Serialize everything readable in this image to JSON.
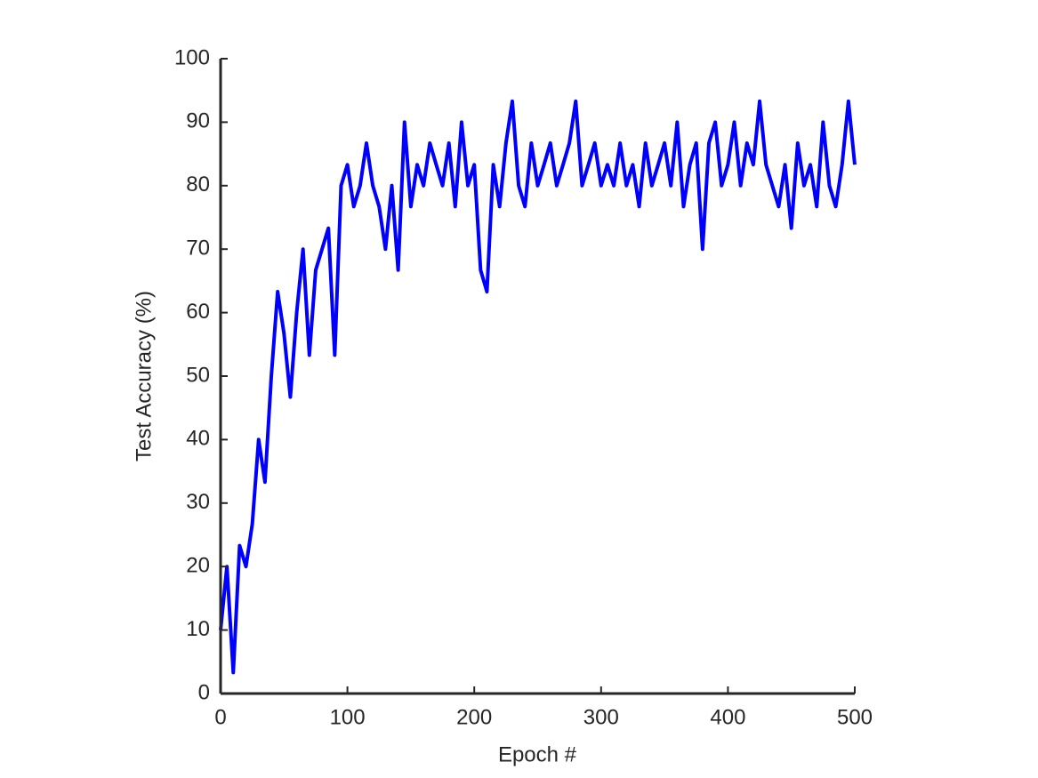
{
  "chart_data": {
    "type": "line",
    "xlabel": "Epoch #",
    "ylabel": "Test Accuracy (%)",
    "x": [
      0,
      5,
      10,
      15,
      20,
      25,
      30,
      35,
      40,
      45,
      50,
      55,
      60,
      65,
      70,
      75,
      80,
      85,
      90,
      95,
      100,
      105,
      110,
      115,
      120,
      125,
      130,
      135,
      140,
      145,
      150,
      155,
      160,
      165,
      170,
      175,
      180,
      185,
      190,
      195,
      200,
      205,
      210,
      215,
      220,
      225,
      230,
      235,
      240,
      245,
      250,
      255,
      260,
      265,
      270,
      275,
      280,
      285,
      290,
      295,
      300,
      305,
      310,
      315,
      320,
      325,
      330,
      335,
      340,
      345,
      350,
      355,
      360,
      365,
      370,
      375,
      380,
      385,
      390,
      395,
      400,
      405,
      410,
      415,
      420,
      425,
      430,
      435,
      440,
      445,
      450,
      455,
      460,
      465,
      470,
      475,
      480,
      485,
      490,
      495,
      500
    ],
    "series": [
      {
        "name": "Test Accuracy",
        "color": "#0000ff",
        "values": [
          10,
          20,
          3.3,
          23.3,
          20,
          26.7,
          40,
          33.3,
          50,
          63.3,
          56.7,
          46.7,
          60,
          70,
          53.3,
          66.7,
          70,
          73.3,
          53.3,
          80,
          83.3,
          76.7,
          80,
          86.7,
          80,
          76.7,
          70,
          80,
          66.7,
          90,
          76.7,
          83.3,
          80,
          86.7,
          83.3,
          80,
          86.7,
          76.7,
          90,
          80,
          83.3,
          66.7,
          63.3,
          83.3,
          76.7,
          86.7,
          93.3,
          80,
          76.7,
          86.7,
          80,
          83.3,
          86.7,
          80,
          83.3,
          86.7,
          93.3,
          80,
          83.3,
          86.7,
          80,
          83.3,
          80,
          86.7,
          80,
          83.3,
          76.7,
          86.7,
          80,
          83.3,
          86.7,
          80,
          90,
          76.7,
          83.3,
          86.7,
          70,
          86.7,
          90,
          80,
          83.3,
          90,
          80,
          86.7,
          83.3,
          93.3,
          83.3,
          80,
          76.7,
          83.3,
          73.3,
          86.7,
          80,
          83.3,
          76.7,
          90,
          80,
          76.7,
          83.3,
          93.3,
          83.3
        ]
      }
    ],
    "xlim": [
      0,
      500
    ],
    "ylim": [
      0,
      100
    ],
    "xticks": [
      0,
      100,
      200,
      300,
      400,
      500
    ],
    "yticks": [
      0,
      10,
      20,
      30,
      40,
      50,
      60,
      70,
      80,
      90,
      100
    ]
  }
}
